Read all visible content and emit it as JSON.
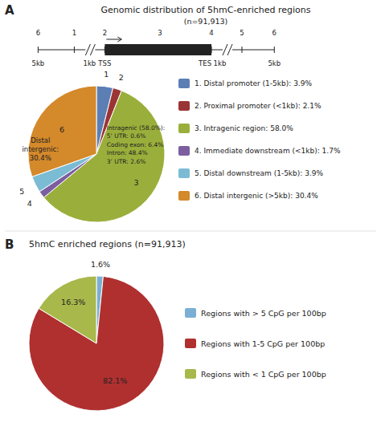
{
  "chart_data": [
    {
      "type": "pie",
      "title": "Genomic distribution of 5hmC-enriched regions",
      "subtitle": "(n=91,913)",
      "categories": [
        "1. Distal promoter (1-5kb): 3.9%",
        "2. Proximal promoter (<1kb): 2.1%",
        "3. Intragenic region:   58.0%",
        "4. Immediate downstream (<1kb): 1.7%",
        "5. Distal downstream (1-5kb): 3.9%",
        "6. Distal intergenic (>5kb): 30.4%"
      ],
      "values": [
        3.9,
        2.1,
        58.0,
        1.7,
        3.9,
        30.4
      ],
      "colors": [
        "#5b7fb5",
        "#9b3535",
        "#9aaf3b",
        "#7c5ea0",
        "#7bbcd4",
        "#d4892a"
      ],
      "slice_labels": [
        "1",
        "2",
        "3",
        "4",
        "5",
        "6"
      ],
      "legend": "right",
      "annotations": [
        "A",
        "6",
        "1",
        "2",
        "3",
        "4",
        "5",
        "6",
        "5kb",
        "1kb",
        "TSS",
        "TES",
        "1kb",
        "5kb",
        "Intragenic (58.0%):\n5’ UTR: 0.6%\nCoding exon: 6.4%\nIntron: 48.4%\n3’ UTR: 2.6%",
        "Distal\nintergenic:\n30.4%"
      ]
    },
    {
      "type": "pie",
      "title": "5hmC enriched regions (n=91,913)",
      "categories": [
        "Regions with > 5 CpG per 100bp",
        "Regions with 1-5 CpG per 100bp",
        "Regions with < 1 CpG per 100bp"
      ],
      "values": [
        1.6,
        82.1,
        16.3
      ],
      "value_labels": [
        "1.6%",
        "82.1%",
        "16.3%"
      ],
      "data_labels": true,
      "colors": [
        "#7bafd4",
        "#b03030",
        "#a8b84b"
      ],
      "legend": "right",
      "annotations": [
        "B"
      ]
    }
  ]
}
